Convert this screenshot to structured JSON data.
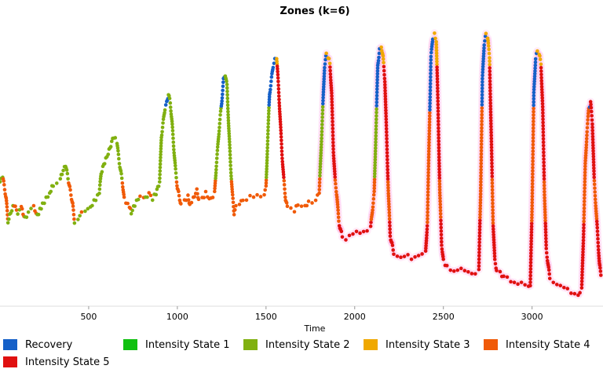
{
  "chart_data": {
    "type": "scatter",
    "title": "Zones (k=6)",
    "xlabel": "Time",
    "ylabel": "",
    "xlim": [
      0,
      3400
    ],
    "ylim": [
      0,
      100
    ],
    "xticks": [
      500,
      1000,
      1500,
      2000,
      2500,
      3000
    ],
    "series": [
      {
        "name": "Recovery",
        "color": "#1560c8"
      },
      {
        "name": "Intensity State 1",
        "color": "#10c010"
      },
      {
        "name": "Intensity State 2",
        "color": "#80b010"
      },
      {
        "name": "Intensity State 3",
        "color": "#f0a800"
      },
      {
        "name": "Intensity State 4",
        "color": "#f05a08"
      },
      {
        "name": "Intensity State 5",
        "color": "#e01010"
      }
    ],
    "trace": [
      [
        0,
        44
      ],
      [
        15,
        46
      ],
      [
        35,
        38
      ],
      [
        45,
        30
      ],
      [
        60,
        33
      ],
      [
        80,
        36
      ],
      [
        100,
        33
      ],
      [
        120,
        35
      ],
      [
        140,
        31
      ],
      [
        160,
        33
      ],
      [
        190,
        35
      ],
      [
        210,
        32
      ],
      [
        240,
        36
      ],
      [
        260,
        38
      ],
      [
        280,
        40
      ],
      [
        300,
        43
      ],
      [
        320,
        44
      ],
      [
        340,
        45
      ],
      [
        350,
        47
      ],
      [
        370,
        50
      ],
      [
        390,
        43
      ],
      [
        410,
        36
      ],
      [
        420,
        30
      ],
      [
        440,
        31
      ],
      [
        460,
        33
      ],
      [
        480,
        33
      ],
      [
        510,
        35
      ],
      [
        530,
        37
      ],
      [
        560,
        40
      ],
      [
        570,
        47
      ],
      [
        590,
        51
      ],
      [
        610,
        54
      ],
      [
        620,
        56
      ],
      [
        640,
        60
      ],
      [
        660,
        58
      ],
      [
        670,
        52
      ],
      [
        690,
        44
      ],
      [
        700,
        38
      ],
      [
        720,
        36
      ],
      [
        730,
        35
      ],
      [
        740,
        33
      ],
      [
        760,
        36
      ],
      [
        770,
        37
      ],
      [
        790,
        39
      ],
      [
        810,
        39
      ],
      [
        820,
        38
      ],
      [
        840,
        40
      ],
      [
        860,
        38
      ],
      [
        880,
        40
      ],
      [
        890,
        42
      ],
      [
        900,
        44
      ],
      [
        910,
        60
      ],
      [
        930,
        70
      ],
      [
        940,
        72
      ],
      [
        950,
        75
      ],
      [
        960,
        72
      ],
      [
        970,
        65
      ],
      [
        980,
        56
      ],
      [
        990,
        48
      ],
      [
        1000,
        42
      ],
      [
        1020,
        36
      ],
      [
        1040,
        37
      ],
      [
        1060,
        39
      ],
      [
        1070,
        36
      ],
      [
        1090,
        38
      ],
      [
        1110,
        41
      ],
      [
        1120,
        38
      ],
      [
        1140,
        38
      ],
      [
        1160,
        40
      ],
      [
        1180,
        38
      ],
      [
        1190,
        38
      ],
      [
        1210,
        40
      ],
      [
        1220,
        50
      ],
      [
        1230,
        58
      ],
      [
        1240,
        66
      ],
      [
        1250,
        72
      ],
      [
        1260,
        80
      ],
      [
        1270,
        82
      ],
      [
        1280,
        78
      ],
      [
        1290,
        63
      ],
      [
        1300,
        50
      ],
      [
        1310,
        40
      ],
      [
        1320,
        33
      ],
      [
        1330,
        35
      ],
      [
        1350,
        36
      ],
      [
        1370,
        38
      ],
      [
        1390,
        38
      ],
      [
        1410,
        39
      ],
      [
        1430,
        38
      ],
      [
        1450,
        39
      ],
      [
        1470,
        39
      ],
      [
        1490,
        40
      ],
      [
        1500,
        42
      ],
      [
        1510,
        60
      ],
      [
        1520,
        75
      ],
      [
        1540,
        85
      ],
      [
        1550,
        87
      ],
      [
        1560,
        88
      ],
      [
        1570,
        78
      ],
      [
        1580,
        66
      ],
      [
        1590,
        54
      ],
      [
        1600,
        45
      ],
      [
        1610,
        38
      ],
      [
        1620,
        35
      ],
      [
        1640,
        35
      ],
      [
        1660,
        34
      ],
      [
        1680,
        36
      ],
      [
        1700,
        35
      ],
      [
        1720,
        35
      ],
      [
        1740,
        37
      ],
      [
        1760,
        37
      ],
      [
        1780,
        38
      ],
      [
        1800,
        40
      ],
      [
        1820,
        70
      ],
      [
        1830,
        85
      ],
      [
        1840,
        89
      ],
      [
        1850,
        88
      ],
      [
        1860,
        86
      ],
      [
        1870,
        75
      ],
      [
        1880,
        55
      ],
      [
        1890,
        44
      ],
      [
        1900,
        39
      ],
      [
        1910,
        30
      ],
      [
        1920,
        27
      ],
      [
        1930,
        25
      ],
      [
        1950,
        24
      ],
      [
        1970,
        25
      ],
      [
        1990,
        25
      ],
      [
        2010,
        26
      ],
      [
        2030,
        26
      ],
      [
        2050,
        27
      ],
      [
        2070,
        27
      ],
      [
        2090,
        28
      ],
      [
        2110,
        40
      ],
      [
        2130,
        85
      ],
      [
        2140,
        91
      ],
      [
        2150,
        92
      ],
      [
        2160,
        88
      ],
      [
        2170,
        80
      ],
      [
        2180,
        60
      ],
      [
        2190,
        40
      ],
      [
        2200,
        25
      ],
      [
        2220,
        19
      ],
      [
        2240,
        18
      ],
      [
        2260,
        17
      ],
      [
        2280,
        17
      ],
      [
        2300,
        18
      ],
      [
        2320,
        17
      ],
      [
        2340,
        18
      ],
      [
        2360,
        18
      ],
      [
        2380,
        18
      ],
      [
        2400,
        19
      ],
      [
        2410,
        30
      ],
      [
        2420,
        60
      ],
      [
        2430,
        88
      ],
      [
        2440,
        95
      ],
      [
        2450,
        96
      ],
      [
        2460,
        94
      ],
      [
        2470,
        70
      ],
      [
        2480,
        40
      ],
      [
        2490,
        22
      ],
      [
        2500,
        16
      ],
      [
        2520,
        14
      ],
      [
        2540,
        13
      ],
      [
        2560,
        13
      ],
      [
        2580,
        13
      ],
      [
        2600,
        13
      ],
      [
        2620,
        12
      ],
      [
        2640,
        12
      ],
      [
        2660,
        12
      ],
      [
        2680,
        12
      ],
      [
        2700,
        13
      ],
      [
        2710,
        40
      ],
      [
        2720,
        80
      ],
      [
        2730,
        93
      ],
      [
        2740,
        96
      ],
      [
        2750,
        95
      ],
      [
        2760,
        88
      ],
      [
        2770,
        60
      ],
      [
        2780,
        30
      ],
      [
        2790,
        16
      ],
      [
        2800,
        13
      ],
      [
        2820,
        12
      ],
      [
        2840,
        10
      ],
      [
        2860,
        10
      ],
      [
        2880,
        9
      ],
      [
        2900,
        9
      ],
      [
        2920,
        8
      ],
      [
        2940,
        8
      ],
      [
        2960,
        7
      ],
      [
        2980,
        7
      ],
      [
        2990,
        7
      ],
      [
        3000,
        35
      ],
      [
        3010,
        75
      ],
      [
        3020,
        88
      ],
      [
        3030,
        90
      ],
      [
        3040,
        89
      ],
      [
        3050,
        86
      ],
      [
        3060,
        70
      ],
      [
        3070,
        40
      ],
      [
        3080,
        20
      ],
      [
        3100,
        10
      ],
      [
        3120,
        9
      ],
      [
        3140,
        8
      ],
      [
        3160,
        7
      ],
      [
        3180,
        6
      ],
      [
        3200,
        6
      ],
      [
        3220,
        5
      ],
      [
        3240,
        5
      ],
      [
        3260,
        4
      ],
      [
        3280,
        6
      ],
      [
        3290,
        25
      ],
      [
        3300,
        50
      ],
      [
        3310,
        62
      ],
      [
        3320,
        70
      ],
      [
        3330,
        72
      ],
      [
        3340,
        65
      ],
      [
        3350,
        45
      ],
      [
        3360,
        35
      ],
      [
        3370,
        25
      ],
      [
        3380,
        15
      ],
      [
        3390,
        10
      ]
    ]
  },
  "legend": {
    "items": [
      {
        "label": "Recovery",
        "color": "#1560c8"
      },
      {
        "label": "Intensity State 1",
        "color": "#10c010"
      },
      {
        "label": "Intensity State 2",
        "color": "#80b010"
      },
      {
        "label": "Intensity State 3",
        "color": "#f0a800"
      },
      {
        "label": "Intensity State 4",
        "color": "#f05a08"
      },
      {
        "label": "Intensity State 5",
        "color": "#e01010"
      }
    ]
  }
}
